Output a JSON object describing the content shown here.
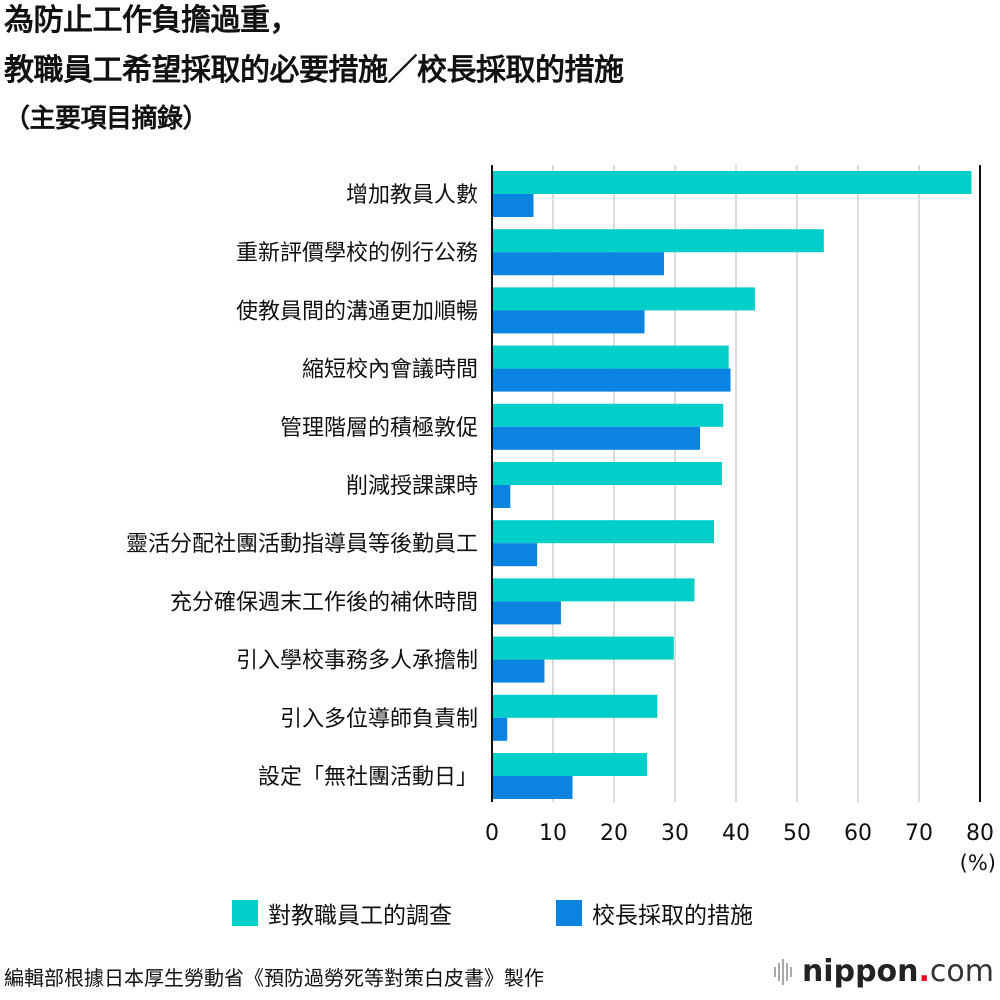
{
  "title": {
    "line1": "為防止工作負擔過重，",
    "line2": "教職員工希望採取的必要措施／校長採取的措施",
    "line3": "（主要項目摘錄）"
  },
  "chart_data": {
    "type": "bar",
    "orientation": "horizontal",
    "categories": [
      "增加教員人數",
      "重新評價學校的例行公務",
      "使教員間的溝通更加順暢",
      "縮短校內會議時間",
      "管理階層的積極敦促",
      "削減授課課時",
      "靈活分配社團活動指導員等後勤員工",
      "充分確保週末工作後的補休時間",
      "引入學校事務多人承擔制",
      "引入多位導師負責制",
      "設定「無社團活動日」"
    ],
    "series": [
      {
        "name": "對教職員工的調查",
        "color": "#00cec8",
        "values": [
          78.6,
          54.4,
          43.1,
          38.8,
          37.9,
          37.7,
          36.4,
          33.2,
          29.8,
          27.1,
          25.4
        ]
      },
      {
        "name": "校長採取的措施",
        "color": "#0a84e0",
        "values": [
          6.8,
          28.2,
          25.0,
          39.1,
          34.1,
          3.0,
          7.4,
          11.3,
          8.6,
          2.5,
          13.2
        ]
      }
    ],
    "xlim": [
      0,
      80
    ],
    "xticks": [
      "0",
      "10",
      "20",
      "30",
      "40",
      "50",
      "60",
      "70",
      "80"
    ],
    "unit_label": "(%)",
    "grid": true,
    "legend_position": "bottom"
  },
  "footer": {
    "source": "編輯部根據日本厚生勞動省《預防過勞死等對策白皮書》製作",
    "logo": {
      "main": "nippon",
      "dot": ".",
      "suffix": "com"
    }
  }
}
